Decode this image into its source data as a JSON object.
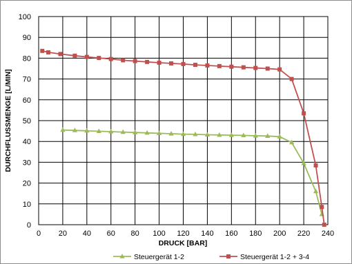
{
  "chart_data": {
    "type": "line",
    "xlabel": "DRUCK [BAR]",
    "ylabel": "DURCHFLUSSMENGE [L/MIN]",
    "xlim": [
      0,
      240
    ],
    "ylim": [
      0,
      100
    ],
    "x_ticks": [
      0,
      20,
      40,
      60,
      80,
      100,
      120,
      140,
      160,
      180,
      200,
      220,
      240
    ],
    "y_ticks": [
      0,
      10,
      20,
      30,
      40,
      50,
      60,
      70,
      80,
      90,
      100
    ],
    "grid": true,
    "legend_position": "bottom",
    "series": [
      {
        "name": "Steuergerät 1-2",
        "color": "#9bbb59",
        "marker": "triangle",
        "x": [
          20,
          30,
          40,
          50,
          60,
          70,
          80,
          90,
          100,
          110,
          120,
          130,
          140,
          150,
          160,
          170,
          180,
          190,
          200,
          210,
          220,
          230,
          235
        ],
        "y": [
          45.5,
          45.3,
          45.1,
          44.9,
          44.7,
          44.5,
          44.3,
          44.1,
          43.9,
          43.7,
          43.5,
          43.4,
          43.2,
          43.1,
          43.0,
          42.9,
          42.7,
          42.6,
          42.3,
          39.5,
          29.5,
          16.0,
          5.0
        ]
      },
      {
        "name": "Steuergerät 1-2 + 3-4",
        "color": "#c0504d",
        "marker": "square",
        "x": [
          3,
          8,
          18,
          30,
          40,
          50,
          60,
          70,
          80,
          90,
          100,
          110,
          120,
          130,
          140,
          150,
          160,
          170,
          180,
          190,
          200,
          210,
          220,
          230,
          235,
          237
        ],
        "y": [
          83.5,
          82.8,
          82.0,
          81.2,
          80.6,
          80.1,
          79.6,
          79.0,
          78.6,
          78.2,
          77.8,
          77.5,
          77.2,
          76.8,
          76.5,
          76.2,
          75.9,
          75.6,
          75.3,
          75.0,
          74.6,
          70.0,
          53.5,
          28.5,
          8.5,
          0.0
        ]
      }
    ]
  }
}
